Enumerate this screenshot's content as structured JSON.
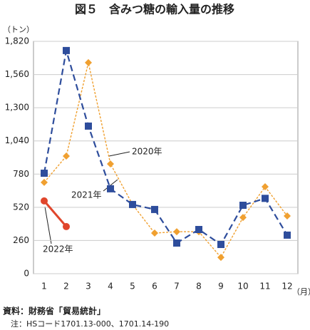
{
  "chart_data": {
    "type": "line",
    "title": "図５　含みつ糖の輸入量の推移",
    "y_unit": "（トン）",
    "x_unit": "（月）",
    "categories": [
      "1",
      "2",
      "3",
      "4",
      "5",
      "6",
      "7",
      "8",
      "9",
      "10",
      "11",
      "12"
    ],
    "series": [
      {
        "name": "2020年",
        "color": "#f0a030",
        "marker": "diamond",
        "dash": "dotted",
        "values": [
          715,
          921,
          1653,
          860,
          542,
          318,
          329,
          329,
          128,
          440,
          681,
          452
        ]
      },
      {
        "name": "2021年",
        "color": "#2e4d9c",
        "marker": "square",
        "dash": "dashed",
        "values": [
          787,
          1748,
          1156,
          665,
          542,
          503,
          240,
          346,
          229,
          536,
          590,
          302
        ]
      },
      {
        "name": "2022年",
        "color": "#e0462c",
        "marker": "circle",
        "dash": "solid",
        "values": [
          570,
          369,
          null,
          null,
          null,
          null,
          null,
          null,
          null,
          null,
          null,
          null
        ]
      }
    ],
    "ylim": [
      0,
      1820
    ],
    "yticks": [
      0,
      260,
      520,
      780,
      {
        "value": 1040,
        "label": "1,040"
      },
      {
        "value": 1300,
        "label": "1,300"
      },
      {
        "value": 1560,
        "label": "1,560"
      },
      {
        "value": 1820,
        "label": "1,820"
      }
    ],
    "grid": true,
    "notes": [
      "資料：財務省「貿易統計」",
      "　注：HSコード1701.13-000、1701.14-190"
    ]
  }
}
